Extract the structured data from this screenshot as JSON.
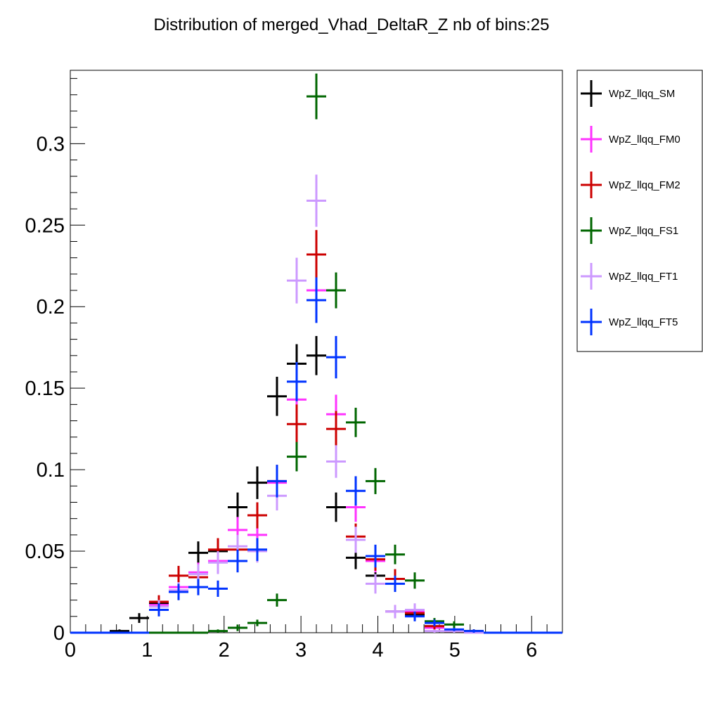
{
  "chart_data": {
    "type": "scatter",
    "title": "Distribution of merged_Vhad_DeltaR_Z nb of bins:25",
    "xlabel": "",
    "ylabel": "",
    "xlim": [
      0,
      6.4
    ],
    "ylim": [
      0,
      0.345
    ],
    "bin_width": 0.256,
    "x_ticks": [
      0,
      1,
      2,
      3,
      4,
      5,
      6
    ],
    "x_tick_labels": [
      "0",
      "1",
      "2",
      "3",
      "4",
      "5",
      "6"
    ],
    "y_ticks": [
      0,
      0.05,
      0.1,
      0.15,
      0.2,
      0.25,
      0.3
    ],
    "y_tick_labels": [
      "0",
      "0.05",
      "0.1",
      "0.15",
      "0.2",
      "0.25",
      "0.3"
    ],
    "grid": false,
    "legend_position": "outside-right-top",
    "x": [
      0.128,
      0.384,
      0.64,
      0.896,
      1.152,
      1.408,
      1.664,
      1.92,
      2.176,
      2.432,
      2.688,
      2.944,
      3.2,
      3.456,
      3.712,
      3.968,
      4.224,
      4.48,
      4.736,
      4.992,
      5.248,
      5.504,
      5.76,
      6.016,
      6.272
    ],
    "series": [
      {
        "name": "WpZ_llqq_SM",
        "color": "#000000",
        "values": [
          0,
          0,
          0.001,
          0.009,
          0.018,
          0.025,
          0.049,
          0.05,
          0.077,
          0.092,
          0.145,
          0.165,
          0.17,
          0.077,
          0.046,
          0.035,
          0.013,
          0.011,
          0.004,
          0.001,
          0.001,
          0,
          0,
          0,
          0
        ],
        "errors": [
          0,
          0,
          0.001,
          0.003,
          0.004,
          0.005,
          0.007,
          0.007,
          0.009,
          0.01,
          0.012,
          0.012,
          0.012,
          0.009,
          0.007,
          0.006,
          0.004,
          0.003,
          0.002,
          0.001,
          0.001,
          0,
          0,
          0,
          0
        ]
      },
      {
        "name": "WpZ_llqq_FM0",
        "color": "#ff33ff",
        "values": [
          0,
          0,
          0,
          0,
          0.017,
          0.028,
          0.037,
          0.044,
          0.063,
          0.06,
          0.092,
          0.143,
          0.21,
          0.134,
          0.077,
          0.044,
          0.013,
          0.013,
          0.003,
          0.001,
          0.001,
          0,
          0,
          0,
          0
        ],
        "errors": [
          0,
          0,
          0,
          0,
          0.004,
          0.005,
          0.006,
          0.007,
          0.008,
          0.008,
          0.01,
          0.012,
          0.015,
          0.012,
          0.009,
          0.007,
          0.004,
          0.004,
          0.002,
          0.001,
          0.001,
          0,
          0,
          0,
          0
        ]
      },
      {
        "name": "WpZ_llqq_FM2",
        "color": "#cc0000",
        "values": [
          0,
          0,
          0,
          0,
          0.019,
          0.035,
          0.034,
          0.051,
          0.051,
          0.072,
          0.093,
          0.128,
          0.232,
          0.125,
          0.059,
          0.045,
          0.033,
          0.012,
          0.004,
          0.001,
          0.001,
          0,
          0,
          0,
          0
        ],
        "errors": [
          0,
          0,
          0,
          0,
          0.004,
          0.006,
          0.006,
          0.007,
          0.007,
          0.008,
          0.01,
          0.012,
          0.015,
          0.011,
          0.008,
          0.007,
          0.006,
          0.003,
          0.002,
          0.001,
          0.001,
          0,
          0,
          0,
          0
        ]
      },
      {
        "name": "WpZ_llqq_FS1",
        "color": "#006600",
        "values": [
          0,
          0,
          0,
          0,
          0,
          0,
          0,
          0.001,
          0.003,
          0.006,
          0.02,
          0.108,
          0.329,
          0.21,
          0.129,
          0.093,
          0.048,
          0.032,
          0.007,
          0.005,
          0.001,
          0,
          0,
          0,
          0
        ],
        "errors": [
          0,
          0,
          0,
          0,
          0,
          0,
          0,
          0.001,
          0.002,
          0.002,
          0.004,
          0.009,
          0.014,
          0.011,
          0.009,
          0.008,
          0.006,
          0.005,
          0.002,
          0.002,
          0.001,
          0,
          0,
          0,
          0
        ]
      },
      {
        "name": "WpZ_llqq_FT1",
        "color": "#cc99ff",
        "values": [
          0,
          0,
          0,
          0,
          0.016,
          0.026,
          0.036,
          0.043,
          0.053,
          0.05,
          0.084,
          0.216,
          0.265,
          0.105,
          0.057,
          0.03,
          0.013,
          0.014,
          0.001,
          0.001,
          0,
          0,
          0,
          0,
          0
        ],
        "errors": [
          0,
          0,
          0,
          0,
          0.004,
          0.005,
          0.006,
          0.007,
          0.007,
          0.007,
          0.009,
          0.014,
          0.016,
          0.01,
          0.008,
          0.006,
          0.004,
          0.004,
          0.001,
          0.001,
          0,
          0,
          0,
          0,
          0
        ]
      },
      {
        "name": "WpZ_llqq_FT5",
        "color": "#0033ff",
        "values": [
          0,
          0,
          0,
          0,
          0.014,
          0.025,
          0.028,
          0.027,
          0.044,
          0.051,
          0.093,
          0.154,
          0.204,
          0.169,
          0.087,
          0.047,
          0.03,
          0.01,
          0.006,
          0.002,
          0.001,
          0,
          0,
          0,
          0
        ],
        "errors": [
          0,
          0,
          0,
          0,
          0.004,
          0.005,
          0.005,
          0.005,
          0.007,
          0.007,
          0.01,
          0.012,
          0.014,
          0.013,
          0.009,
          0.007,
          0.005,
          0.003,
          0.002,
          0.001,
          0.001,
          0,
          0,
          0,
          0
        ]
      }
    ]
  }
}
